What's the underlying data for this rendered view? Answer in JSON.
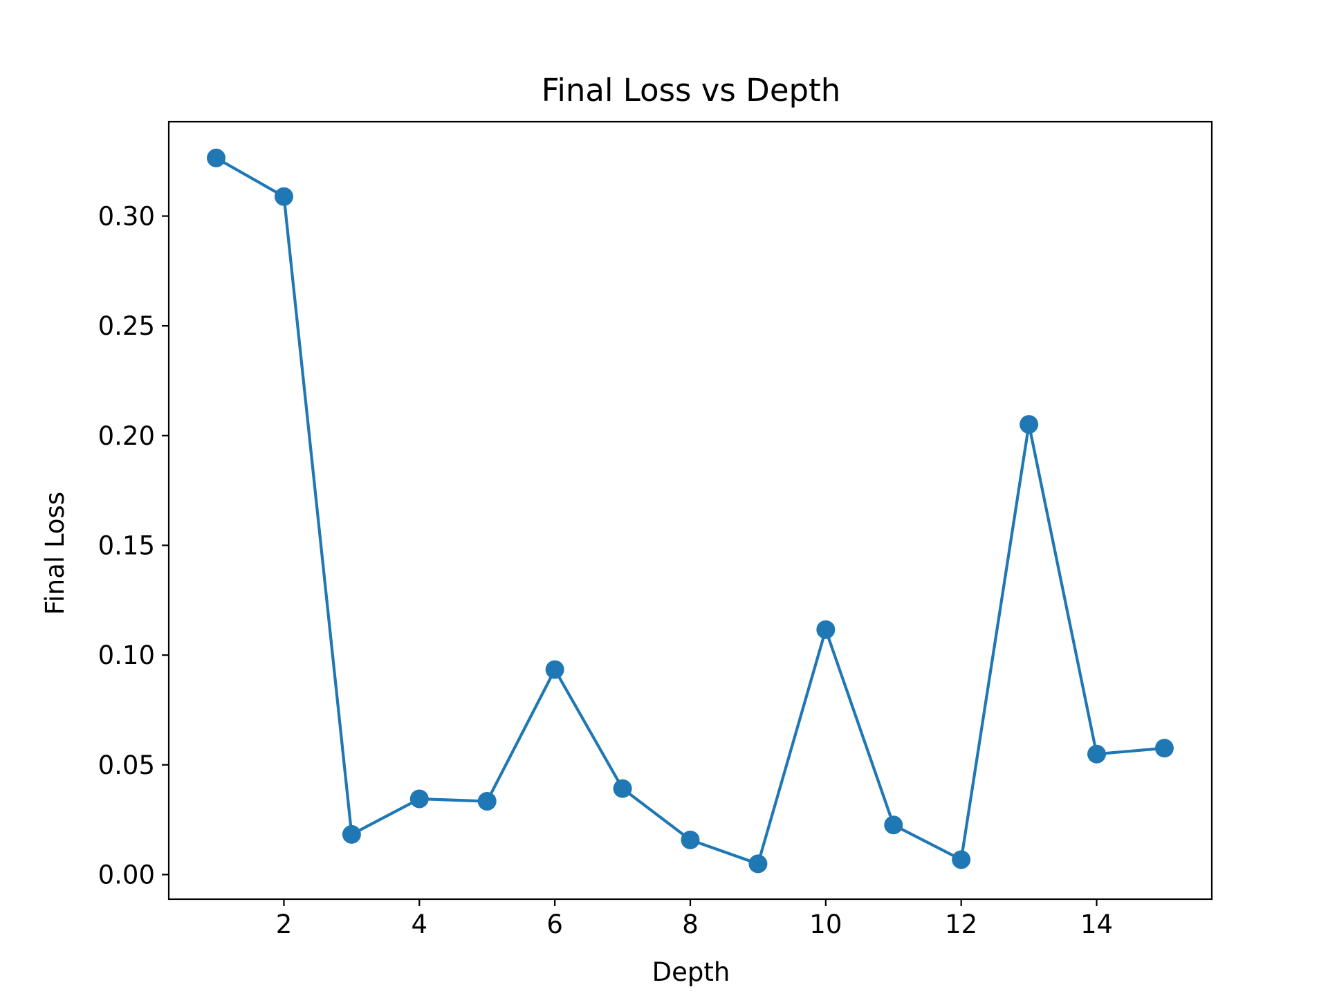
{
  "chart_data": {
    "type": "line",
    "title": "Final Loss vs Depth",
    "xlabel": "Depth",
    "ylabel": "Final Loss",
    "xlim": [
      0.3,
      15.7
    ],
    "ylim": [
      -0.0112,
      0.343
    ],
    "x_ticks": [
      2,
      4,
      6,
      8,
      10,
      12,
      14
    ],
    "y_ticks": [
      0.0,
      0.05,
      0.1,
      0.15,
      0.2,
      0.25,
      0.3
    ],
    "y_tick_labels": [
      "0.00",
      "0.05",
      "0.10",
      "0.15",
      "0.20",
      "0.25",
      "0.30"
    ],
    "grid": false,
    "colors": {
      "series": "#1f77b4"
    },
    "series": [
      {
        "x": [
          1,
          2,
          3,
          4,
          5,
          6,
          7,
          8,
          9,
          10,
          11,
          12,
          13,
          14,
          15
        ],
        "y": [
          0.3265,
          0.3089,
          0.0183,
          0.0345,
          0.0334,
          0.0934,
          0.0392,
          0.0158,
          0.0049,
          0.1116,
          0.0226,
          0.0068,
          0.2051,
          0.0549,
          0.0576
        ],
        "marker": "circle"
      }
    ]
  }
}
